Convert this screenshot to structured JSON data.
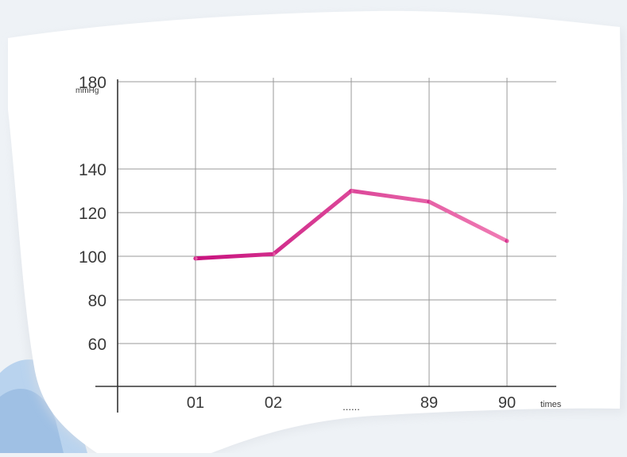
{
  "chart_data": {
    "type": "line",
    "title": "",
    "ylabel": "mmHg",
    "xlabel": "times",
    "categories": [
      "01",
      "02",
      "......",
      "89",
      "90"
    ],
    "series": [
      {
        "values": [
          99,
          101,
          130,
          125,
          107
        ],
        "color": "#d42a8c",
        "end_color": "#ef6fae"
      }
    ],
    "yticks": [
      180,
      140,
      120,
      100,
      80,
      60
    ],
    "ylim": [
      40,
      200
    ],
    "grid": true,
    "colors": {
      "background_panel": "#ffffff",
      "grid": "#9a9a9a",
      "axis": "#333333",
      "line_start": "#c8127e",
      "line_end": "#f07cb4",
      "corner_figure": "#bcd5ef"
    }
  }
}
